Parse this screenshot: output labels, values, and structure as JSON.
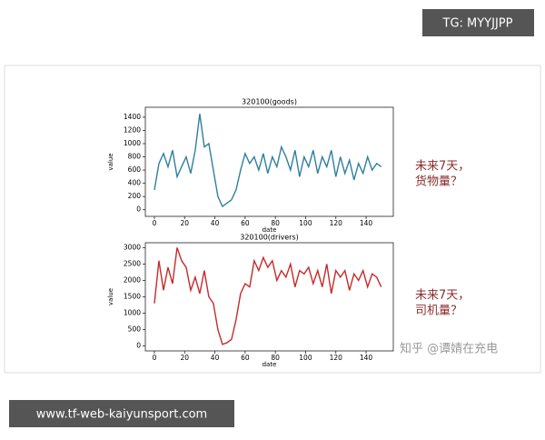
{
  "chart_data": [
    {
      "type": "line",
      "title": "320100(goods)",
      "x_label": "date",
      "y_label": "value",
      "x": [
        0,
        3,
        6,
        9,
        12,
        15,
        18,
        21,
        24,
        27,
        30,
        33,
        36,
        39,
        42,
        45,
        48,
        51,
        54,
        57,
        60,
        63,
        66,
        69,
        72,
        75,
        78,
        81,
        84,
        87,
        90,
        93,
        96,
        99,
        102,
        105,
        108,
        111,
        114,
        117,
        120,
        123,
        126,
        129,
        132,
        135,
        138,
        141,
        144,
        147,
        150
      ],
      "series": [
        {
          "color": "#2f7f9f",
          "values": [
            300,
            700,
            850,
            650,
            900,
            500,
            650,
            800,
            550,
            900,
            1450,
            950,
            1000,
            600,
            200,
            50,
            100,
            150,
            300,
            600,
            850,
            700,
            800,
            600,
            850,
            550,
            800,
            650,
            950,
            800,
            600,
            900,
            500,
            800,
            650,
            900,
            550,
            800,
            650,
            900,
            500,
            800,
            550,
            750,
            450,
            700,
            550,
            800,
            600,
            700,
            650
          ]
        }
      ],
      "xlim": [
        -6,
        158
      ],
      "xticks": [
        0,
        20,
        40,
        60,
        80,
        100,
        120,
        140
      ],
      "ylim": [
        -100,
        1550
      ],
      "yticks": [
        0,
        200,
        400,
        600,
        800,
        1000,
        1200,
        1400
      ]
    },
    {
      "type": "line",
      "title": "320100(drivers)",
      "x_label": "date",
      "y_label": "value",
      "x": [
        0,
        3,
        6,
        9,
        12,
        15,
        18,
        21,
        24,
        27,
        30,
        33,
        36,
        39,
        42,
        45,
        48,
        51,
        54,
        57,
        60,
        63,
        66,
        69,
        72,
        75,
        78,
        81,
        84,
        87,
        90,
        93,
        96,
        99,
        102,
        105,
        108,
        111,
        114,
        117,
        120,
        123,
        126,
        129,
        132,
        135,
        138,
        141,
        144,
        147,
        150
      ],
      "series": [
        {
          "color": "#c62a2a",
          "values": [
            1300,
            2600,
            1700,
            2400,
            1900,
            3000,
            2600,
            2400,
            1700,
            2100,
            1600,
            2300,
            1500,
            1300,
            500,
            50,
            100,
            200,
            800,
            1600,
            1900,
            1800,
            2600,
            2300,
            2700,
            2400,
            2600,
            2000,
            2300,
            2100,
            2500,
            1800,
            2300,
            2200,
            2400,
            1900,
            2300,
            1800,
            2500,
            1600,
            2300,
            2100,
            2300,
            1700,
            2200,
            2000,
            2300,
            1800,
            2200,
            2100,
            1800
          ]
        }
      ],
      "xlim": [
        -6,
        158
      ],
      "xticks": [
        0,
        20,
        40,
        60,
        80,
        100,
        120,
        140
      ],
      "ylim": [
        -150,
        3150
      ],
      "yticks": [
        0,
        500,
        1000,
        1500,
        2000,
        2500,
        3000
      ]
    }
  ],
  "annotations": [
    [
      "未来7天，",
      "货物量？"
    ],
    [
      "未来7天，",
      "司机量？"
    ]
  ],
  "watermarks": {
    "top": "TG: MYYJJPP",
    "source": "知乎 @谭婧在充电",
    "bottom": "www.tf-web-kaiyunsport.com"
  }
}
